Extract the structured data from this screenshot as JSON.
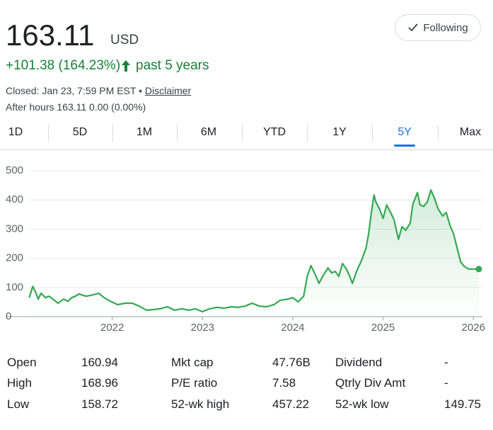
{
  "header": {
    "price": "163.11",
    "currency": "USD",
    "change": "+101.38 (164.23%)",
    "period": "past 5 years",
    "closed": "Closed: Jan 23, 7:59 PM EST",
    "separator": "•",
    "disclaimer": "Disclaimer",
    "after_hours": "After hours 163.11 0.00 (0.00%)"
  },
  "follow_button": "Following",
  "tabs": [
    "1D",
    "5D",
    "1M",
    "6M",
    "YTD",
    "1Y",
    "5Y",
    "Max"
  ],
  "active_tab": "5Y",
  "chart_data": {
    "type": "line",
    "color": "#34a853",
    "x": [
      2021.08,
      2021.12,
      2021.15,
      2021.18,
      2021.21,
      2021.26,
      2021.3,
      2021.36,
      2021.4,
      2021.46,
      2021.51,
      2021.55,
      2021.59,
      2021.63,
      2021.71,
      2021.79,
      2021.85,
      2021.91,
      2021.98,
      2022.06,
      2022.14,
      2022.22,
      2022.3,
      2022.38,
      2022.45,
      2022.53,
      2022.61,
      2022.69,
      2022.77,
      2022.85,
      2022.92,
      2023.0,
      2023.08,
      2023.16,
      2023.24,
      2023.32,
      2023.39,
      2023.47,
      2023.55,
      2023.63,
      2023.71,
      2023.79,
      2023.86,
      2023.94,
      2024.0,
      2024.06,
      2024.12,
      2024.16,
      2024.2,
      2024.24,
      2024.29,
      2024.33,
      2024.39,
      2024.43,
      2024.47,
      2024.51,
      2024.55,
      2024.59,
      2024.63,
      2024.66,
      2024.71,
      2024.76,
      2024.81,
      2024.84,
      2024.87,
      2024.9,
      2024.92,
      2024.96,
      2025.0,
      2025.04,
      2025.08,
      2025.12,
      2025.17,
      2025.21,
      2025.25,
      2025.3,
      2025.33,
      2025.38,
      2025.41,
      2025.45,
      2025.49,
      2025.53,
      2025.57,
      2025.61,
      2025.66,
      2025.7,
      2025.74,
      2025.78,
      2025.82,
      2025.86,
      2025.9,
      2025.95,
      2026.0,
      2026.06
    ],
    "values": [
      65,
      104,
      85,
      60,
      80,
      65,
      70,
      56,
      46,
      60,
      53,
      65,
      70,
      78,
      70,
      75,
      80,
      65,
      53,
      41,
      46,
      46,
      36,
      22,
      24,
      27,
      34,
      22,
      27,
      22,
      27,
      17,
      27,
      32,
      29,
      34,
      32,
      36,
      46,
      36,
      34,
      41,
      56,
      60,
      65,
      51,
      70,
      138,
      175,
      150,
      114,
      138,
      167,
      150,
      155,
      138,
      182,
      165,
      138,
      114,
      158,
      192,
      235,
      284,
      357,
      417,
      393,
      369,
      337,
      383,
      359,
      333,
      265,
      308,
      296,
      320,
      386,
      425,
      383,
      378,
      393,
      434,
      405,
      369,
      345,
      357,
      313,
      284,
      235,
      187,
      172,
      163,
      163,
      163.11
    ],
    "xlim": [
      2021.07,
      2026.1
    ],
    "xticks": [
      2022,
      2023,
      2024,
      2025,
      2026
    ],
    "ylim": [
      0,
      500
    ],
    "yticks": [
      0,
      100,
      200,
      300,
      400,
      500
    ],
    "grid": true
  },
  "stats": {
    "rows": [
      [
        "Open",
        "160.94",
        "Mkt cap",
        "47.76B",
        "Dividend",
        "-"
      ],
      [
        "High",
        "168.96",
        "P/E ratio",
        "7.58",
        "Qtrly Div Amt",
        "-"
      ],
      [
        "Low",
        "158.72",
        "52-wk high",
        "457.22",
        "52-wk low",
        "149.75"
      ]
    ]
  }
}
